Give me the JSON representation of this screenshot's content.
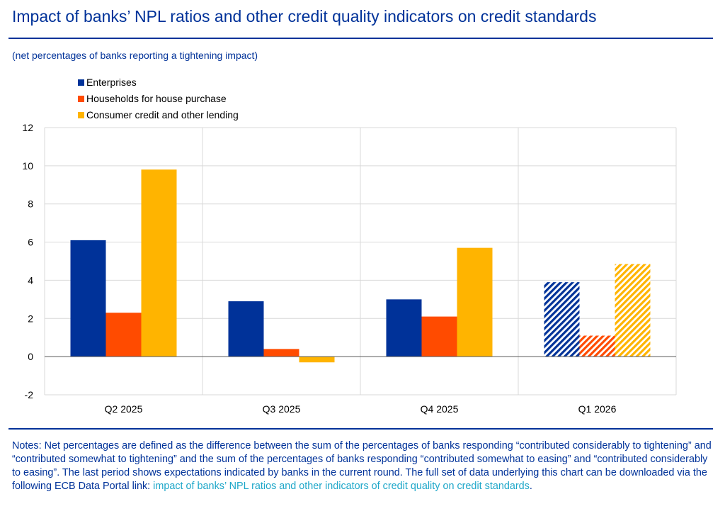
{
  "title": "Impact of banks’ NPL ratios and other credit quality indicators on credit standards",
  "subtitle": "(net percentages of banks reporting a tightening impact)",
  "notes": {
    "text": "Notes: Net percentages are defined as the difference between the sum of the percentages of banks responding “contributed considerably to tightening” and “contributed somewhat to tightening” and the sum of the percentages of banks responding “contributed somewhat to easing” and “contributed considerably to easing”. The last period shows expectations indicated by banks in the current round. The full set of data underlying this chart can be downloaded via the following ECB Data Portal link: ",
    "link_text": "impact of banks’ NPL ratios and other indicators of credit quality on credit standards",
    "end": "."
  },
  "colors": {
    "brand": "#003299",
    "enterprises": "#003299",
    "households": "#ff4b00",
    "consumer": "#ffb400",
    "link": "#1ea7c9",
    "grid": "#d9d9d9"
  },
  "chart_data": {
    "type": "bar",
    "title": "Impact of banks’ NPL ratios and other credit quality indicators on credit standards",
    "ylabel": "(net percentages of banks reporting a tightening impact)",
    "xlabel": "",
    "categories": [
      "Q2 2025",
      "Q3 2025",
      "Q4 2025",
      "Q1 2026"
    ],
    "series": [
      {
        "name": "Enterprises",
        "values": [
          6.1,
          2.9,
          3.0,
          3.9
        ]
      },
      {
        "name": "Households for house purchase",
        "values": [
          2.3,
          0.4,
          2.1,
          1.1
        ]
      },
      {
        "name": "Consumer credit and other lending",
        "values": [
          9.8,
          -0.3,
          5.7,
          4.85
        ]
      }
    ],
    "ylim": [
      -2,
      12
    ],
    "yticks": [
      -2,
      0,
      2,
      4,
      6,
      8,
      10,
      12
    ],
    "grid": true,
    "legend_position": "top-left",
    "hatched_categories": [
      "Q1 2026"
    ]
  }
}
